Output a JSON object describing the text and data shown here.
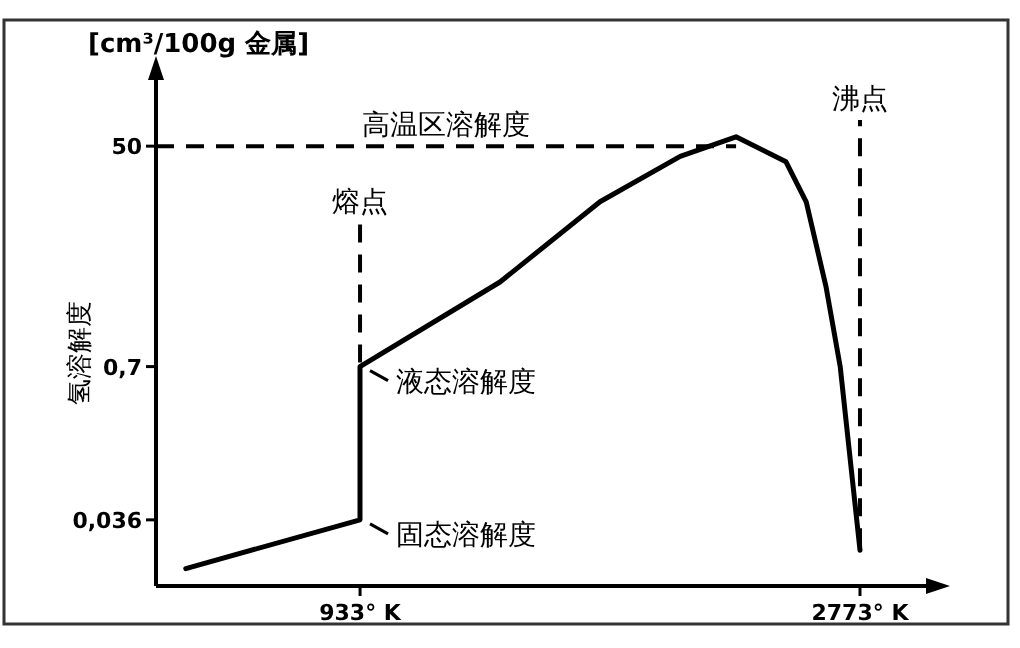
{
  "chart_data": {
    "type": "line",
    "ylabel": "氢溶解度",
    "log": "y",
    "marker": "none",
    "line_style": "solid",
    "xlim": [
      182,
      3016
    ],
    "ylim": [
      0.01,
      180
    ],
    "xticks": [
      {
        "value": 933,
        "label": "933° K"
      },
      {
        "value": 2773,
        "label": "2773° K"
      }
    ],
    "yticks": [
      {
        "value": 0.036,
        "label": "0,036"
      },
      {
        "value": 0.7,
        "label": "0,7"
      },
      50
    ],
    "series": [
      {
        "color": "#000000",
        "x": [
          292,
          933,
          933,
          1448,
          1816,
          2111,
          2317,
          2501,
          2575,
          2648,
          2700,
          2773
        ],
        "values": [
          0.014,
          0.036,
          0.7,
          3.6,
          17,
          41,
          60,
          37,
          17,
          3.3,
          0.7,
          0.02
        ]
      }
    ],
    "ref_lines": [
      {
        "axis": "y",
        "value": 50,
        "label": "高温区溶解度",
        "line_style": "dashed"
      },
      {
        "axis": "x",
        "value": 933,
        "label": "熔点",
        "line_style": "dashed"
      },
      {
        "axis": "x",
        "value": 2773,
        "label": "沸点",
        "line_style": "dashed"
      }
    ],
    "annotations": [
      "[cm³/100g 金属]",
      {
        "text": "液态溶解度",
        "x": 933,
        "y": 0.7
      },
      {
        "text": "固态溶解度",
        "x": 933,
        "y": 0.036
      }
    ]
  }
}
